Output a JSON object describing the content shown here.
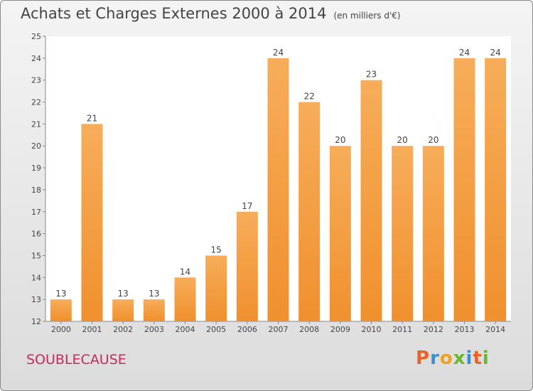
{
  "header": {
    "title": "Achats et Charges Externes 2000 à 2014",
    "subtitle": "(en milliers d'€)"
  },
  "footer": {
    "commune": "SOUBLECAUSE",
    "logo": "Proxiti"
  },
  "colors": {
    "bar": "#f0902e",
    "bar_light": "#f7ad5a",
    "commune": "#c8285e",
    "logo_letters": [
      "#e8632a",
      "#3a8fd0",
      "#f0a020",
      "#6ab82e",
      "#3a8fd0",
      "#e8632a",
      "#6ab82e"
    ]
  },
  "chart_data": {
    "type": "bar",
    "categories": [
      "2000",
      "2001",
      "2002",
      "2003",
      "2004",
      "2005",
      "2006",
      "2007",
      "2008",
      "2009",
      "2010",
      "2011",
      "2012",
      "2013",
      "2014"
    ],
    "values": [
      13,
      21,
      13,
      13,
      14,
      15,
      17,
      24,
      22,
      20,
      23,
      20,
      20,
      24,
      24
    ],
    "title": "Achats et Charges Externes 2000 à 2014",
    "subtitle": "(en milliers d'€)",
    "xlabel": "",
    "ylabel": "",
    "ylim": [
      12,
      25
    ],
    "yticks": [
      12,
      13,
      14,
      15,
      16,
      17,
      18,
      19,
      20,
      21,
      22,
      23,
      24,
      25
    ],
    "grid": false
  }
}
